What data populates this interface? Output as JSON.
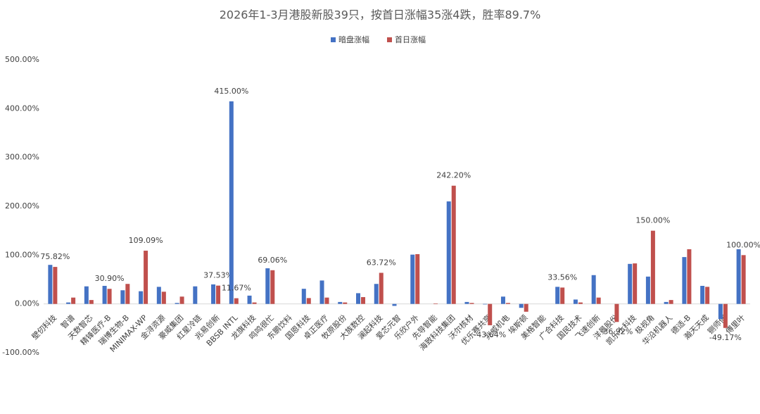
{
  "chart_data": {
    "type": "bar",
    "title": "2026年1-3月港股新股39只，按首日涨幅35涨4跌，胜率89.7%",
    "categories": [
      "壁仞科技",
      "智谱",
      "天数智芯",
      "精锋医疗-B",
      "瑞博生物-B",
      "MINIMAX-WP",
      "金浔资源",
      "豪威集团",
      "红星冷链",
      "兆易创新",
      "BBSB INTL",
      "龙旗科技",
      "鸣鸣很忙",
      "东鹏饮料",
      "国恩科技",
      "卓正医疗",
      "牧原股份",
      "大族数控",
      "澜起科技",
      "爱芯元智",
      "乐欣户外",
      "先导智能",
      "海致科技集团",
      "沃尔核材",
      "优乐赛共享",
      "兆威机电",
      "埃斯顿",
      "美格智能",
      "广合科技",
      "国民技术",
      "飞速创新",
      "洋景股份",
      "凯乐士科技",
      "极视角",
      "华沿机器人",
      "德适-B",
      "瀚天天成",
      "铡师傅",
      "傅里叶"
    ],
    "series": [
      {
        "name": "暗盘涨幅",
        "color": "#4472c4",
        "values": [
          80,
          3,
          36,
          37,
          28,
          26,
          35,
          2,
          36,
          40,
          415,
          17,
          73,
          0,
          31,
          48,
          4,
          22,
          41,
          -4,
          101,
          0,
          210,
          4,
          -1,
          15,
          -8,
          0,
          35,
          9,
          59,
          0,
          82,
          56,
          4,
          96,
          37,
          -31,
          112
        ],
        "value_labels": [
          null,
          null,
          null,
          null,
          null,
          null,
          null,
          null,
          null,
          null,
          "415.00%",
          null,
          null,
          null,
          null,
          null,
          null,
          null,
          null,
          null,
          null,
          null,
          null,
          null,
          null,
          null,
          null,
          null,
          null,
          null,
          null,
          null,
          null,
          null,
          null,
          null,
          null,
          null,
          null
        ]
      },
      {
        "name": "首日涨幅",
        "color": "#c0504d",
        "values": [
          75.82,
          13,
          8,
          30.9,
          41,
          109.09,
          25,
          15,
          0,
          37.53,
          11.67,
          3,
          69.06,
          0,
          12,
          13,
          3,
          14,
          63.72,
          0,
          102,
          1,
          242.2,
          2,
          -43.64,
          2,
          -16,
          0,
          33.56,
          3,
          13,
          -36.92,
          83,
          150,
          8,
          112,
          35,
          -49.17,
          100
        ],
        "value_labels": [
          "75.82%",
          null,
          null,
          "30.90%",
          null,
          "109.09%",
          null,
          null,
          null,
          "37.53%",
          "11.67%",
          null,
          "69.06%",
          null,
          null,
          null,
          null,
          null,
          "63.72%",
          null,
          null,
          null,
          "242.20%",
          null,
          "-43.64%",
          null,
          null,
          null,
          "33.56%",
          null,
          null,
          "-36.92%",
          null,
          "150.00%",
          null,
          null,
          null,
          "-49.17%",
          "100.00%"
        ]
      }
    ],
    "ylim": [
      -100,
      500
    ],
    "yticks": [
      {
        "value": -100,
        "label": "-100.00%"
      },
      {
        "value": 0,
        "label": "0.00%"
      },
      {
        "value": 100,
        "label": "100.00%"
      },
      {
        "value": 200,
        "label": "200.00%"
      },
      {
        "value": 300,
        "label": "300.00%"
      },
      {
        "value": 400,
        "label": "400.00%"
      },
      {
        "value": 500,
        "label": "500.00%"
      }
    ],
    "legend": "top"
  }
}
